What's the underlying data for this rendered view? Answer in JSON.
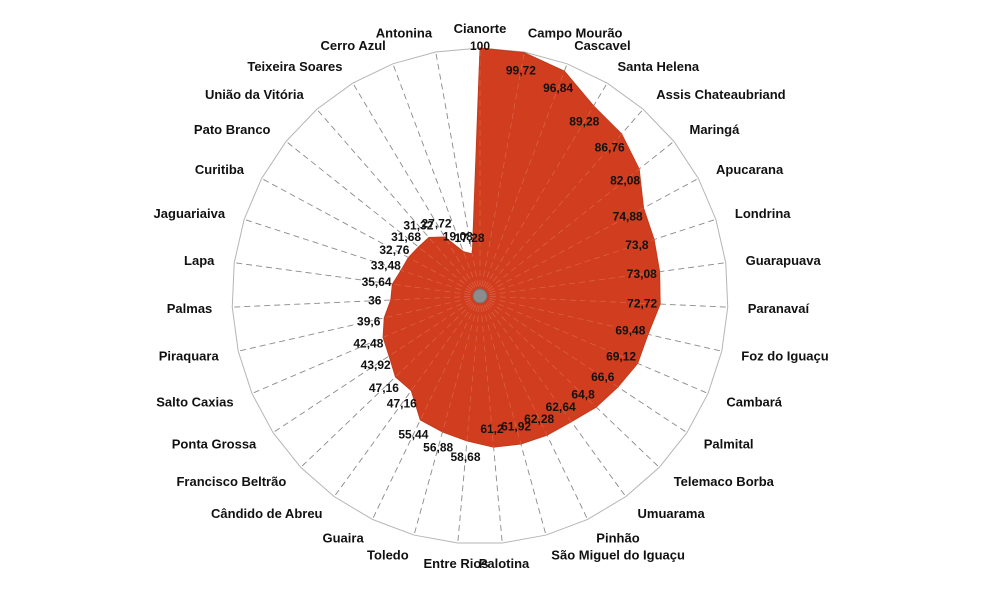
{
  "chart_data": {
    "type": "radar-area",
    "title": "",
    "rmax": 100,
    "fill_color": "#D13E1F",
    "grid_color": "#8a8a8a",
    "center_color": "#8c8c8c",
    "grid": true,
    "categories": [
      "Cianorte",
      "Campo Mourão",
      "Cascavel",
      "Santa Helena",
      "Assis Chateaubriand",
      "Maringá",
      "Apucarana",
      "Londrina",
      "Guarapuava",
      "Paranavaí",
      "Foz do Iguaçu",
      "Cambará",
      "Palmital",
      "Telemaco Borba",
      "Umuarama",
      "Pinhão",
      "São Miguel do Iguaçu",
      "Palotina",
      "Entre Rios",
      "Toledo",
      "Guaira",
      "Cândido de Abreu",
      "Francisco Beltrão",
      "Ponta Grossa",
      "Salto Caxias",
      "Piraquara",
      "Palmas",
      "Lapa",
      "Jaguariaiva",
      "Curitiba",
      "Pato Branco",
      "União da Vitória",
      "Teixeira Soares",
      "Cerro Azul",
      "Antonina"
    ],
    "values": [
      100,
      99.72,
      96.84,
      89.28,
      86.76,
      82.08,
      74.88,
      73.8,
      73.08,
      72.72,
      69.48,
      69.12,
      66.6,
      64.8,
      62.64,
      62.28,
      61.92,
      61.2,
      58.68,
      56.88,
      55.44,
      47.16,
      47.16,
      43.92,
      42.48,
      39.6,
      36,
      35.64,
      33.48,
      32.76,
      31.68,
      31.32,
      27.72,
      19.08,
      17.28
    ],
    "value_labels": [
      "100",
      "99,72",
      "96,84",
      "89,28",
      "86,76",
      "82,08",
      "74,88",
      "73,8",
      "73,08",
      "72,72",
      "69,48",
      "69,12",
      "66,6",
      "64,8",
      "62,64",
      "62,28",
      "61,92",
      "61,2",
      "58,68",
      "56,88",
      "55,44",
      "47,16",
      "47,16",
      "43,92",
      "42,48",
      "39,6",
      "36",
      "35,64",
      "33,48",
      "32,76",
      "31,68",
      "31,32",
      "27,72",
      "19,08",
      "17,28"
    ]
  }
}
